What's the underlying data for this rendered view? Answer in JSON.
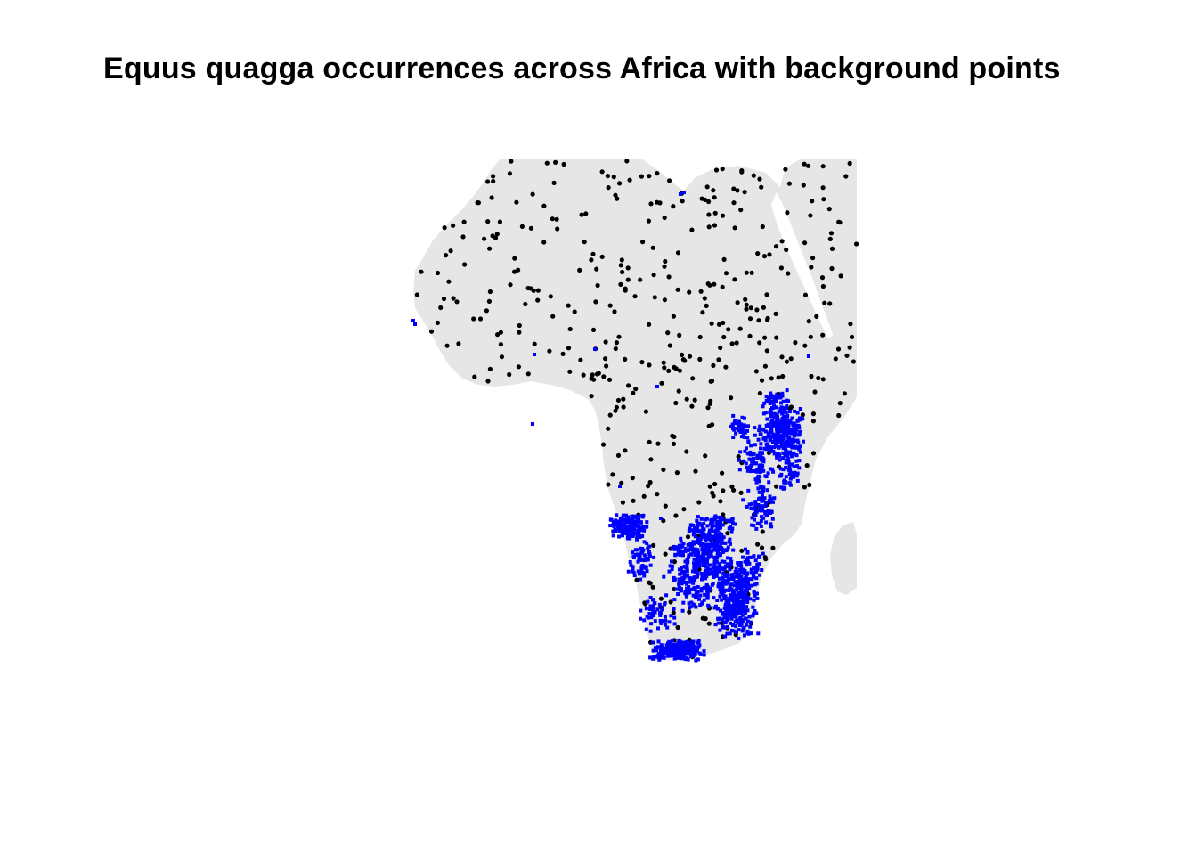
{
  "title": "Equus quagga occurrences across Africa with background points",
  "colors": {
    "land": "#e6e6e6",
    "occurrence": "#0000ff",
    "background_point": "#000000"
  },
  "map_extent": {
    "lon": [
      -20,
      55
    ],
    "lat": [
      -36,
      38
    ]
  },
  "layers": [
    {
      "layer": "land",
      "kind": "polygon"
    },
    {
      "layer": "background points",
      "kind": "points",
      "color": "#000000",
      "approx_count": 500
    },
    {
      "layer": "occurrences",
      "kind": "points",
      "color": "#0000ff",
      "regions": [
        "East Africa",
        "Southern Africa"
      ]
    }
  ]
}
